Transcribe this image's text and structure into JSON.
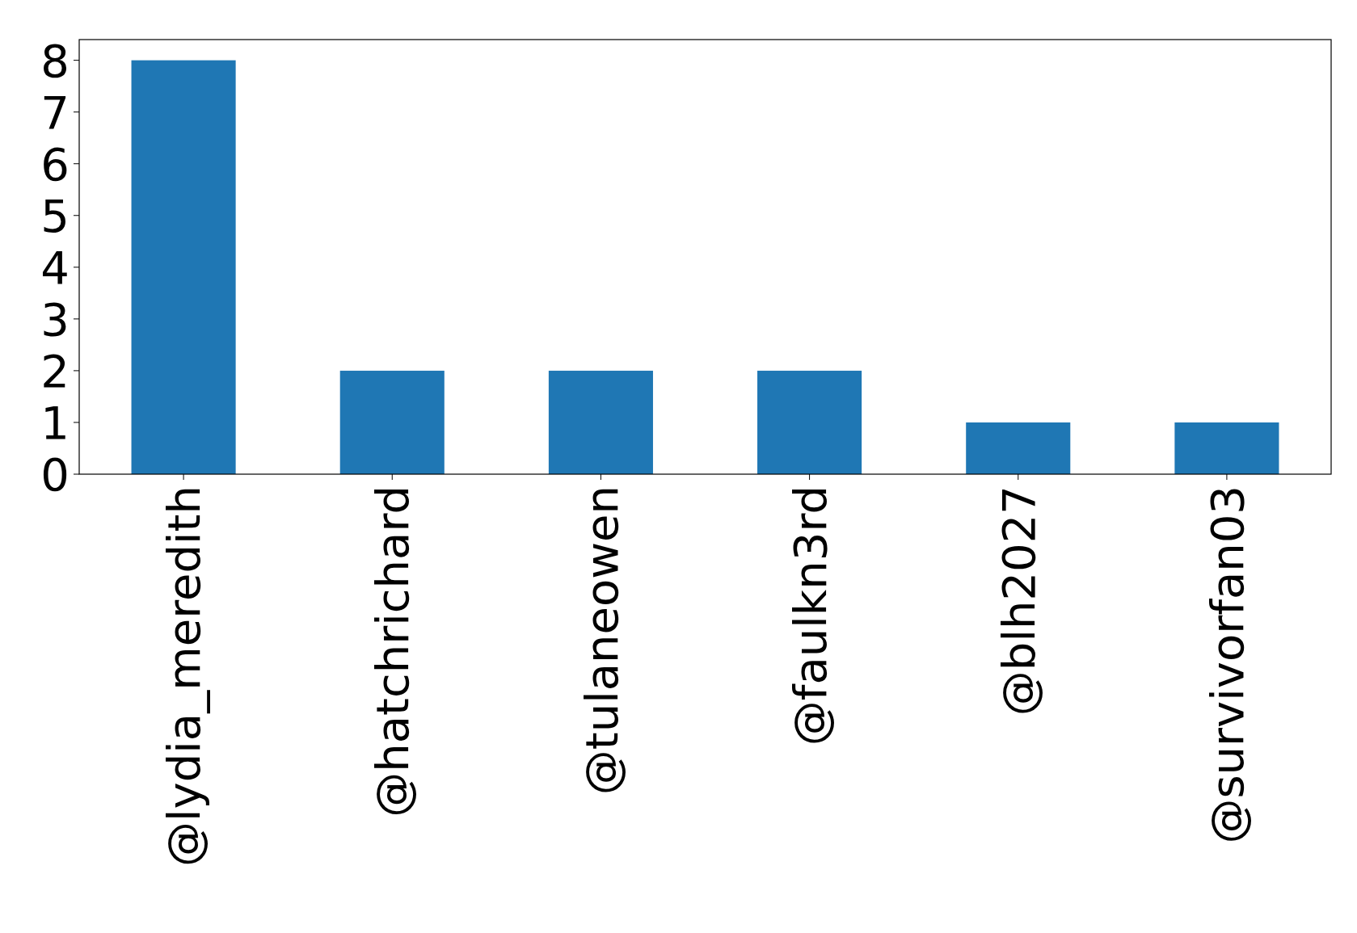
{
  "chart_data": {
    "type": "bar",
    "categories": [
      "@lydia_meredith",
      "@hatchrichard",
      "@tulaneowen",
      "@faulkn3rd",
      "@blh2027",
      "@survivorfan03"
    ],
    "values": [
      8,
      2,
      2,
      2,
      1,
      1
    ],
    "color": "#1f77b4",
    "ylim": [
      0,
      8.4
    ],
    "yticks": [
      0,
      1,
      2,
      3,
      4,
      5,
      6,
      7,
      8
    ]
  }
}
